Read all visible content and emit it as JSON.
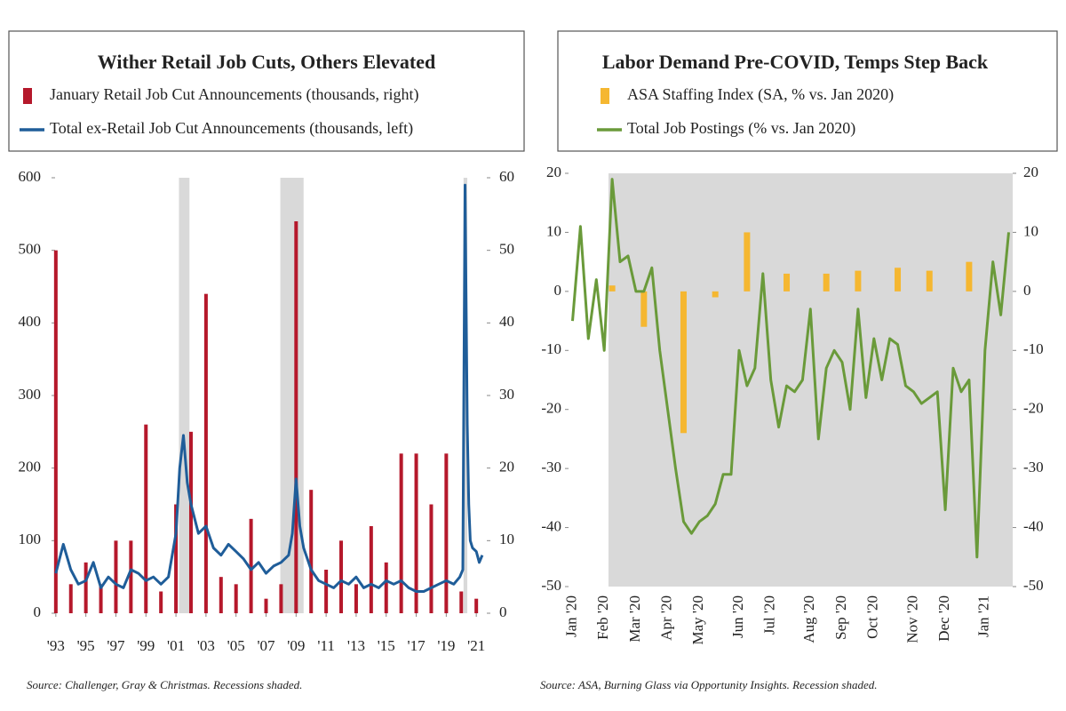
{
  "chart_data": [
    {
      "type": "combo",
      "title": "Wither Retail Job Cuts, Others Elevated",
      "source": "Source:  Challenger, Gray & Christmas. Recessions shaded.",
      "xlim": [
        1992.95,
        2021.7
      ],
      "xticks": [
        {
          "value": 1993,
          "label": "'93"
        },
        {
          "value": 1995,
          "label": "'95"
        },
        {
          "value": 1997,
          "label": "'97"
        },
        {
          "value": 1999,
          "label": "'99"
        },
        {
          "value": 2001,
          "label": "'01"
        },
        {
          "value": 2003,
          "label": "'03"
        },
        {
          "value": 2005,
          "label": "'05"
        },
        {
          "value": 2007,
          "label": "'07"
        },
        {
          "value": 2009,
          "label": "'09"
        },
        {
          "value": 2011,
          "label": "'11"
        },
        {
          "value": 2013,
          "label": "'13"
        },
        {
          "value": 2015,
          "label": "'15"
        },
        {
          "value": 2017,
          "label": "'17"
        },
        {
          "value": 2019,
          "label": "'19"
        },
        {
          "value": 2021,
          "label": "'21"
        }
      ],
      "ylim": [
        0,
        600
      ],
      "yticks": [
        0,
        100,
        200,
        300,
        400,
        500,
        600
      ],
      "y2lim": [
        0,
        60
      ],
      "y2ticks": [
        0,
        10,
        20,
        30,
        40,
        50,
        60
      ],
      "recessions": [
        [
          2001.2,
          2001.9
        ],
        [
          2007.95,
          2009.5
        ],
        [
          2020.15,
          2020.4
        ]
      ],
      "series": [
        {
          "name": "January Retail Job Cut Announcements (thousands, right)",
          "type": "bar",
          "color": "#b5182b",
          "axis": "y2",
          "x": [
            1993,
            1994,
            1995,
            1996,
            1997,
            1998,
            1999,
            2000,
            2001,
            2002,
            2003,
            2004,
            2005,
            2006,
            2007,
            2008,
            2009,
            2010,
            2011,
            2012,
            2013,
            2014,
            2015,
            2016,
            2017,
            2018,
            2019,
            2020,
            2021
          ],
          "values": [
            50,
            4,
            7,
            4,
            10,
            10,
            26,
            3,
            15,
            25,
            44,
            5,
            4,
            13,
            2,
            4,
            54,
            17,
            6,
            10,
            4,
            12,
            7,
            22,
            22,
            15,
            22,
            3,
            2
          ]
        },
        {
          "name": "Total ex-Retail Job Cut Announcements (thousands, left)",
          "type": "line",
          "color": "#1f5d99",
          "x": [
            1993.0,
            1993.5,
            1994.0,
            1994.5,
            1995.0,
            1995.5,
            1996.0,
            1996.5,
            1997.0,
            1997.5,
            1998.0,
            1998.5,
            1999.0,
            1999.5,
            2000.0,
            2000.5,
            2001.0,
            2001.25,
            2001.5,
            2001.75,
            2002.0,
            2002.5,
            2003.0,
            2003.5,
            2004.0,
            2004.5,
            2005.0,
            2005.5,
            2006.0,
            2006.5,
            2007.0,
            2007.5,
            2008.0,
            2008.5,
            2008.75,
            2009.0,
            2009.25,
            2009.5,
            2010.0,
            2010.5,
            2011.0,
            2011.5,
            2012.0,
            2012.5,
            2013.0,
            2013.5,
            2014.0,
            2014.5,
            2015.0,
            2015.5,
            2016.0,
            2016.5,
            2017.0,
            2017.5,
            2018.0,
            2018.5,
            2019.0,
            2019.5,
            2019.9,
            2020.1,
            2020.25,
            2020.4,
            2020.5,
            2020.6,
            2020.75,
            2021.0,
            2021.2,
            2021.4
          ],
          "values": [
            55,
            95,
            60,
            40,
            45,
            70,
            35,
            50,
            40,
            35,
            60,
            55,
            45,
            50,
            40,
            50,
            110,
            200,
            245,
            180,
            150,
            110,
            120,
            90,
            80,
            95,
            85,
            75,
            60,
            70,
            55,
            65,
            70,
            80,
            110,
            185,
            120,
            90,
            60,
            45,
            40,
            35,
            45,
            40,
            50,
            35,
            40,
            35,
            45,
            40,
            45,
            35,
            30,
            30,
            35,
            40,
            45,
            40,
            50,
            60,
            590,
            260,
            150,
            100,
            90,
            85,
            70,
            80
          ]
        }
      ]
    },
    {
      "type": "combo",
      "title": "Labor Demand Pre-COVID, Temps Step Back",
      "source": "Source:  ASA, Burning Glass via Opportunity Insights. Recession shaded.",
      "categories": [
        "Jan '20",
        null,
        null,
        null,
        "Feb '20",
        null,
        null,
        null,
        "Mar '20",
        null,
        null,
        null,
        "Apr '20",
        null,
        null,
        null,
        "May '20",
        null,
        null,
        null,
        null,
        "Jun '20",
        null,
        null,
        null,
        "Jul '20",
        null,
        null,
        null,
        null,
        "Aug '20",
        null,
        null,
        null,
        "Sep '20",
        null,
        null,
        null,
        "Oct '20",
        null,
        null,
        null,
        null,
        "Nov '20",
        null,
        null,
        null,
        "Dec '20",
        null,
        null,
        null,
        null,
        "Jan '21",
        null,
        null,
        null
      ],
      "ylim": [
        -50,
        20
      ],
      "yticks": [
        -50,
        -40,
        -30,
        -20,
        -10,
        0,
        10,
        20
      ],
      "y2lim": [
        -50,
        20
      ],
      "y2ticks": [
        -50,
        -40,
        -30,
        -20,
        -10,
        0,
        10,
        20
      ],
      "series": [
        {
          "name": "ASA Staffing Index (SA, % vs. Jan 2020)",
          "type": "bar",
          "color": "#f5b731",
          "values": [
            null,
            null,
            null,
            null,
            null,
            1,
            null,
            null,
            null,
            -6,
            null,
            null,
            null,
            null,
            -24,
            null,
            null,
            null,
            -1,
            null,
            null,
            null,
            10,
            null,
            null,
            null,
            null,
            3,
            null,
            null,
            null,
            null,
            3,
            null,
            null,
            null,
            3.5,
            null,
            null,
            null,
            null,
            4,
            null,
            null,
            null,
            3.5,
            null,
            null,
            null,
            null,
            5,
            null,
            null,
            null,
            null,
            null
          ]
        },
        {
          "name": "Total Job Postings (% vs. Jan 2020)",
          "type": "line",
          "color": "#6a9a3a",
          "values": [
            -5,
            11,
            -8,
            2,
            -10,
            19,
            5,
            6,
            0,
            0,
            4,
            -10,
            -20,
            -30,
            -39,
            -41,
            -39,
            -38,
            -36,
            -31,
            -31,
            -10,
            -16,
            -13,
            3,
            -15,
            -23,
            -16,
            -17,
            -15,
            -3,
            -25,
            -13,
            -10,
            -12,
            -20,
            -3,
            -18,
            -8,
            -15,
            -8,
            -9,
            -16,
            -17,
            -19,
            -18,
            -17,
            -37,
            -13,
            -17,
            -15,
            -45,
            -10,
            5,
            -4,
            10
          ]
        }
      ]
    }
  ]
}
